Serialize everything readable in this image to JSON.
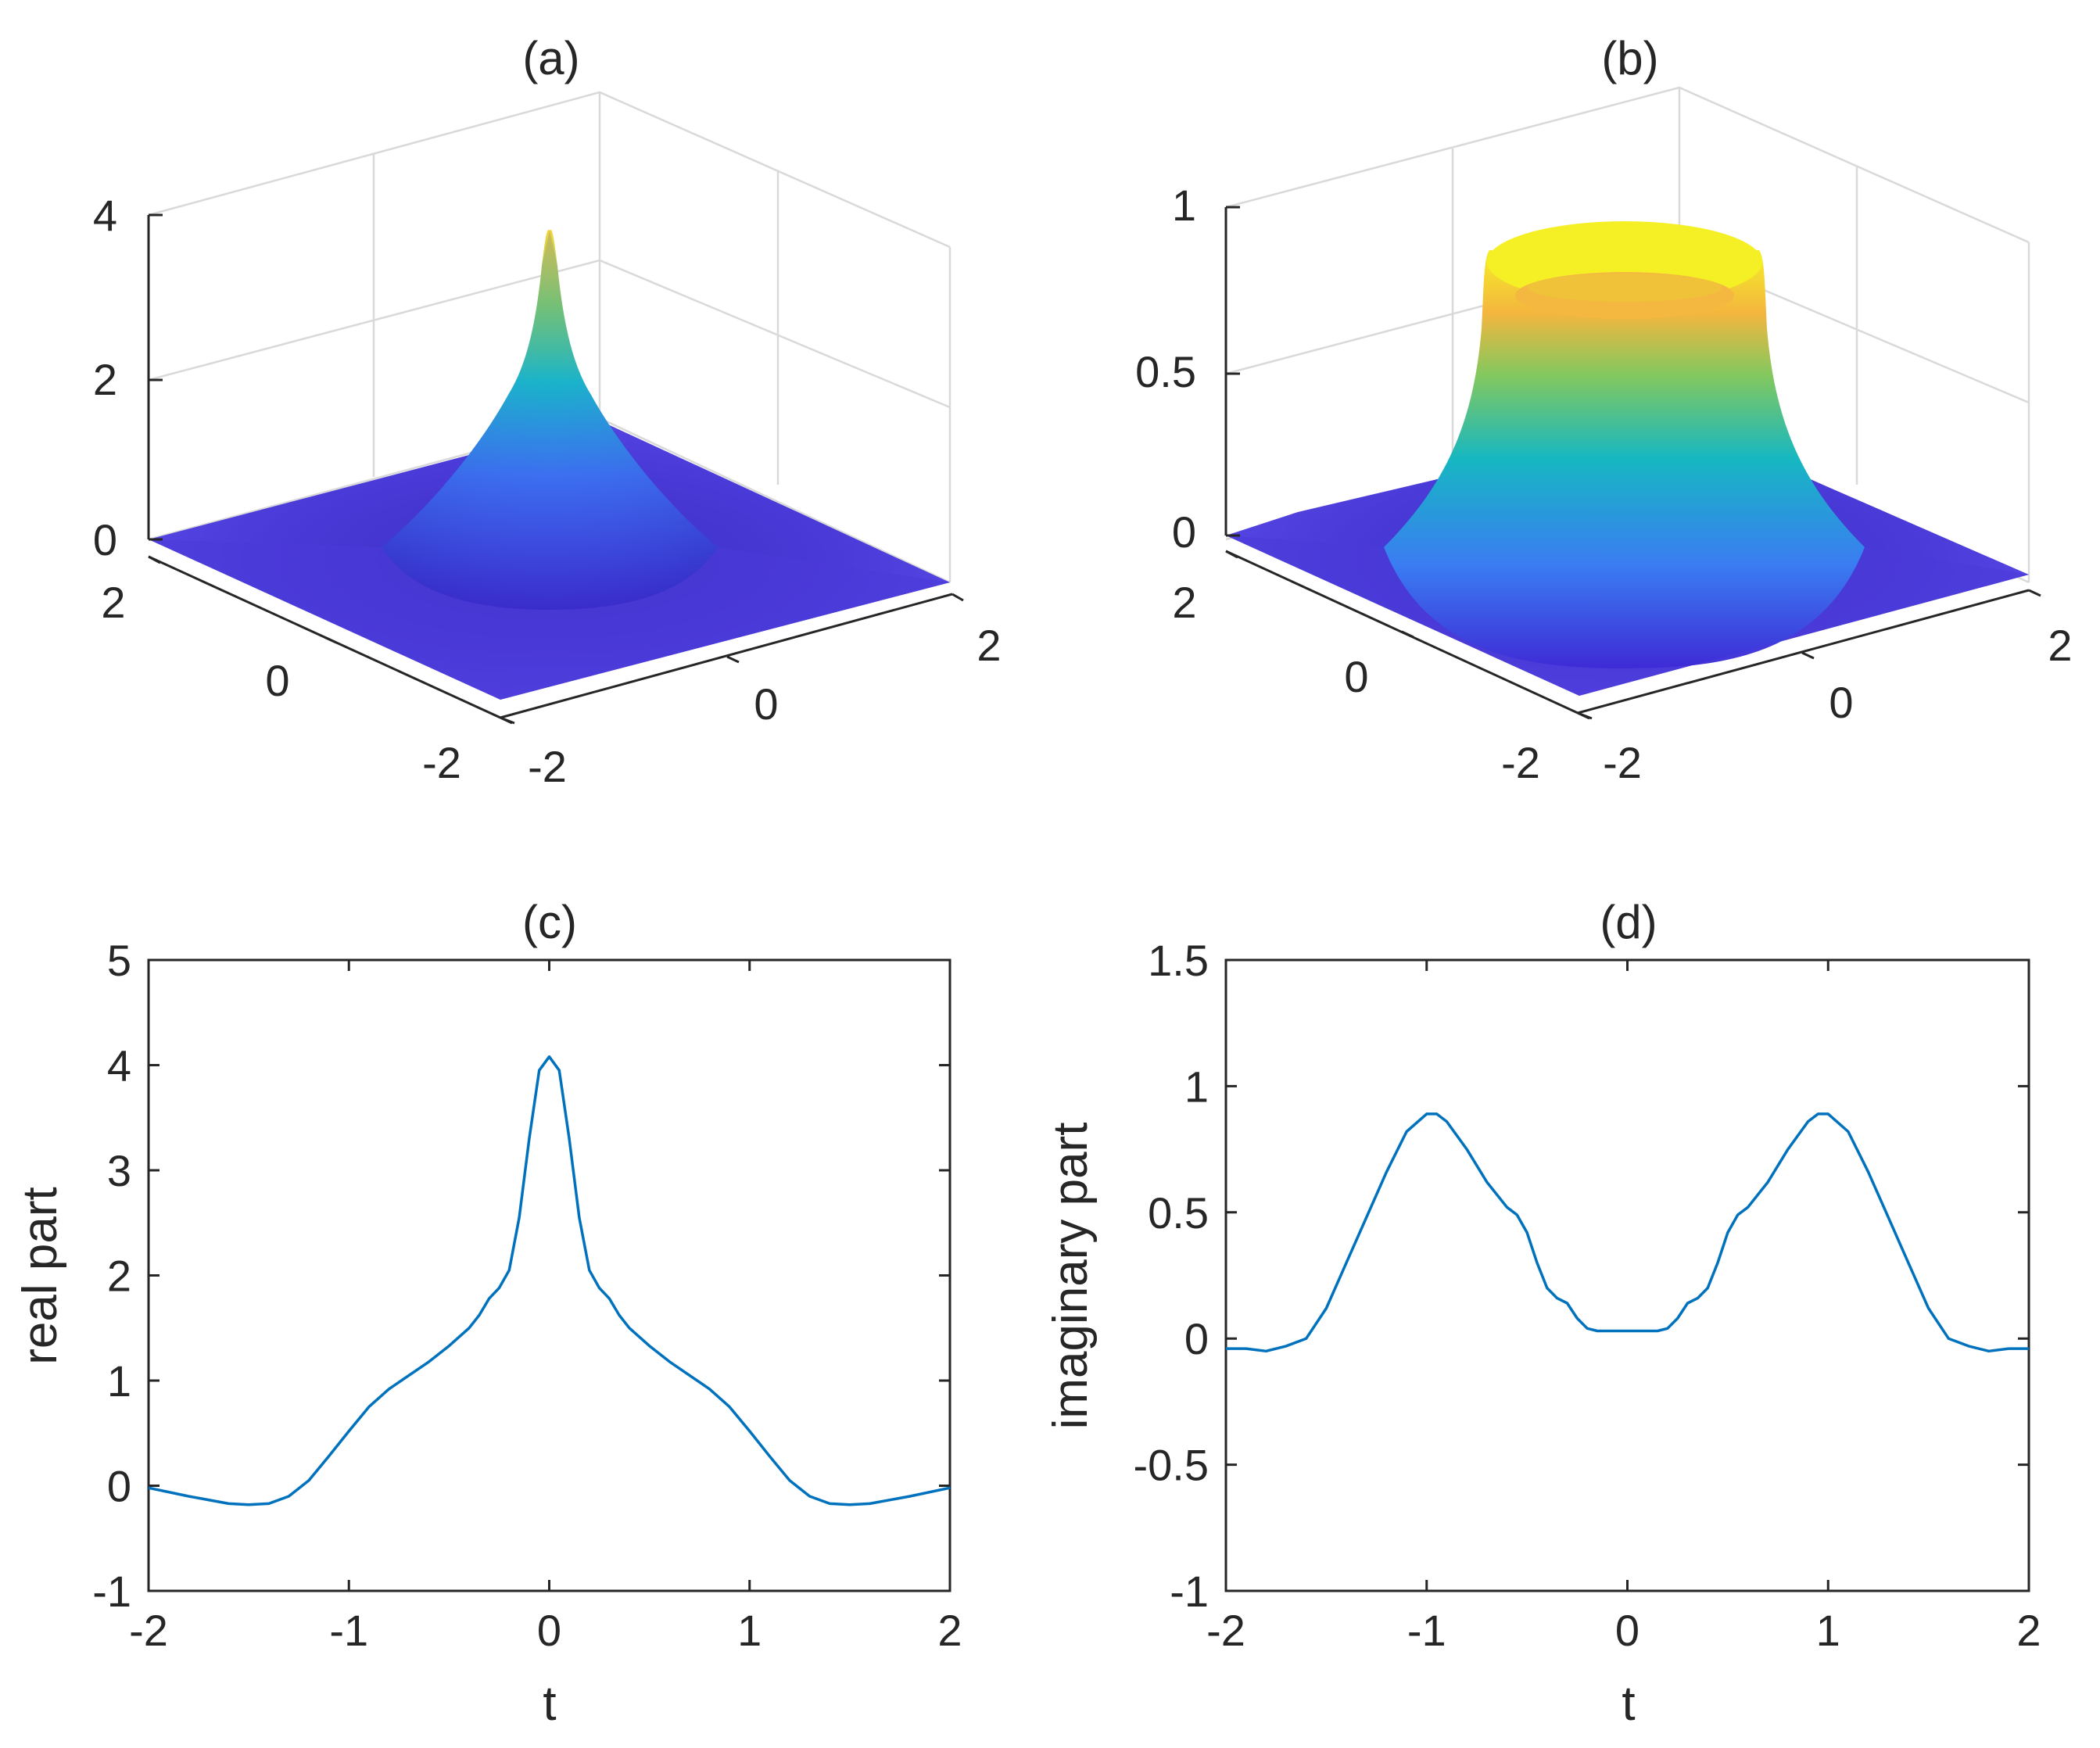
{
  "chart_data": [
    {
      "type": "surface",
      "panel": "a",
      "title": "(a)",
      "zlim": [
        0,
        4
      ],
      "z_ticks": [
        "0",
        "2",
        "4"
      ],
      "x_ticks": [
        "-2",
        "0",
        "2"
      ],
      "y_ticks": [
        "-2",
        "0",
        "2"
      ],
      "xlim": [
        -2,
        2
      ],
      "ylim": [
        -2,
        2
      ],
      "peak_value": 3.8,
      "colormap": "parula"
    },
    {
      "type": "surface",
      "panel": "b",
      "title": "(b)",
      "zlim": [
        0,
        1
      ],
      "z_ticks": [
        "0",
        "0.5",
        "1"
      ],
      "x_ticks": [
        "-2",
        "0",
        "2"
      ],
      "y_ticks": [
        "-2",
        "0",
        "2"
      ],
      "xlim": [
        -2,
        2
      ],
      "ylim": [
        -2,
        2
      ],
      "ring_radius": 0.9,
      "ring_height": 0.92,
      "colormap": "parula"
    },
    {
      "type": "line",
      "panel": "c",
      "title": "(c)",
      "xlabel": "t",
      "ylabel": "real part",
      "xlim": [
        -2,
        2
      ],
      "ylim": [
        -1,
        5
      ],
      "x_ticks": [
        "-2",
        "-1",
        "0",
        "1",
        "2"
      ],
      "y_ticks": [
        "-1",
        "0",
        "1",
        "2",
        "3",
        "4",
        "5"
      ],
      "series": [
        {
          "name": "real part",
          "color": "#0072BD",
          "x": [
            -2.0,
            -1.8,
            -1.6,
            -1.5,
            -1.4,
            -1.3,
            -1.2,
            -1.1,
            -1.0,
            -0.9,
            -0.8,
            -0.7,
            -0.6,
            -0.5,
            -0.4,
            -0.35,
            -0.3,
            -0.25,
            -0.2,
            -0.15,
            -0.1,
            -0.05,
            0.0,
            0.05,
            0.1,
            0.15,
            0.2,
            0.25,
            0.3,
            0.35,
            0.4,
            0.5,
            0.6,
            0.7,
            0.8,
            0.9,
            1.0,
            1.1,
            1.2,
            1.3,
            1.4,
            1.5,
            1.6,
            1.8,
            2.0
          ],
          "y": [
            -0.02,
            -0.1,
            -0.17,
            -0.18,
            -0.17,
            -0.1,
            0.05,
            0.28,
            0.52,
            0.75,
            0.92,
            1.05,
            1.18,
            1.33,
            1.5,
            1.62,
            1.78,
            1.88,
            2.05,
            2.55,
            3.3,
            3.95,
            4.08,
            3.95,
            3.3,
            2.55,
            2.05,
            1.88,
            1.78,
            1.62,
            1.5,
            1.33,
            1.18,
            1.05,
            0.92,
            0.75,
            0.52,
            0.28,
            0.05,
            -0.1,
            -0.17,
            -0.18,
            -0.17,
            -0.1,
            -0.02
          ]
        }
      ]
    },
    {
      "type": "line",
      "panel": "d",
      "title": "(d)",
      "xlabel": "t",
      "ylabel": "imaginary part",
      "xlim": [
        -2,
        2
      ],
      "ylim": [
        -1,
        1.5
      ],
      "x_ticks": [
        "-2",
        "-1",
        "0",
        "1",
        "2"
      ],
      "y_ticks": [
        "-1",
        "-0.5",
        "0",
        "0.5",
        "1",
        "1.5"
      ],
      "series": [
        {
          "name": "imaginary part",
          "color": "#0072BD",
          "x": [
            -2.0,
            -1.9,
            -1.8,
            -1.7,
            -1.6,
            -1.5,
            -1.4,
            -1.3,
            -1.2,
            -1.1,
            -1.0,
            -0.95,
            -0.9,
            -0.8,
            -0.7,
            -0.6,
            -0.55,
            -0.5,
            -0.45,
            -0.4,
            -0.35,
            -0.3,
            -0.25,
            -0.2,
            -0.15,
            -0.1,
            -0.05,
            0.0,
            0.05,
            0.1,
            0.15,
            0.2,
            0.25,
            0.3,
            0.35,
            0.4,
            0.45,
            0.5,
            0.55,
            0.6,
            0.7,
            0.8,
            0.9,
            0.95,
            1.0,
            1.1,
            1.2,
            1.3,
            1.4,
            1.5,
            1.6,
            1.7,
            1.8,
            1.9,
            2.0
          ],
          "y": [
            -0.04,
            -0.04,
            -0.05,
            -0.03,
            0.0,
            0.12,
            0.3,
            0.48,
            0.66,
            0.82,
            0.89,
            0.89,
            0.86,
            0.75,
            0.62,
            0.52,
            0.49,
            0.42,
            0.3,
            0.2,
            0.16,
            0.14,
            0.08,
            0.04,
            0.03,
            0.03,
            0.03,
            0.03,
            0.03,
            0.03,
            0.03,
            0.04,
            0.08,
            0.14,
            0.16,
            0.2,
            0.3,
            0.42,
            0.49,
            0.52,
            0.62,
            0.75,
            0.86,
            0.89,
            0.89,
            0.82,
            0.66,
            0.48,
            0.3,
            0.12,
            0.0,
            -0.03,
            -0.05,
            -0.04,
            -0.04
          ]
        }
      ]
    }
  ]
}
